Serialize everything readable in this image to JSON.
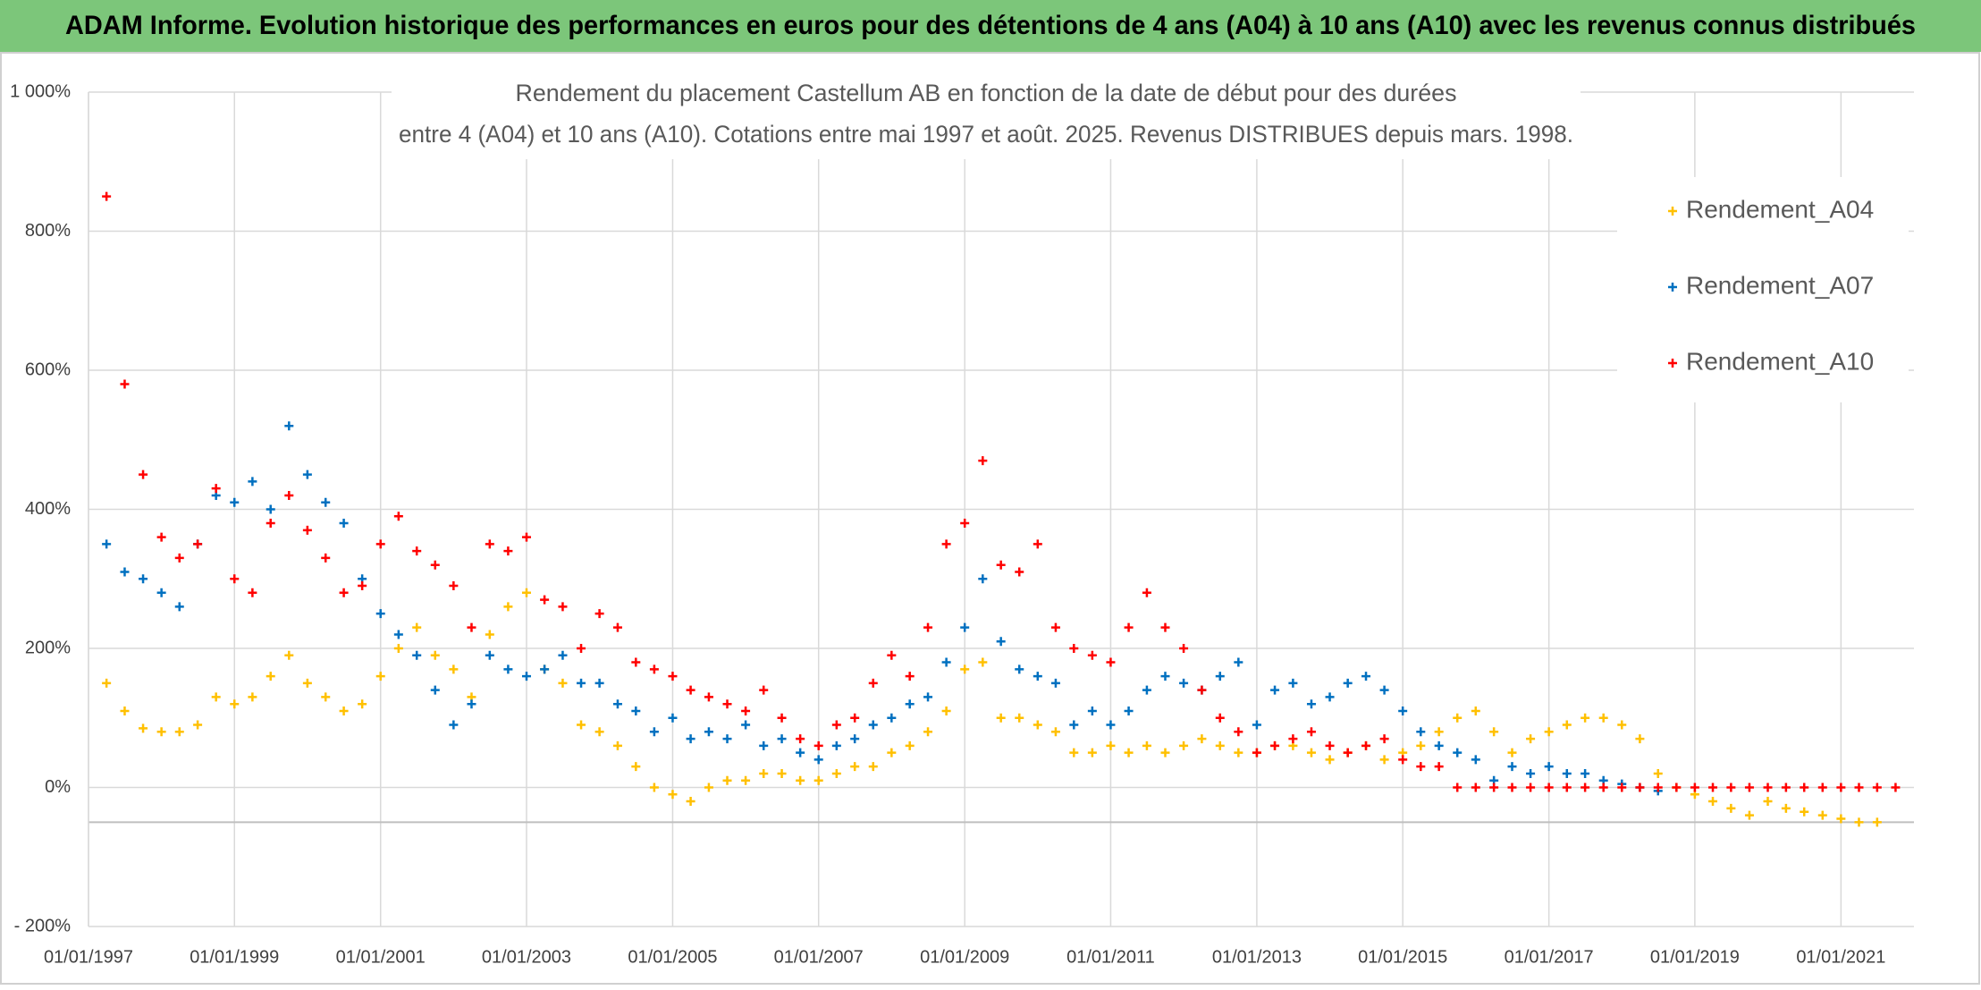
{
  "chart_data": {
    "type": "scatter",
    "header": "ADAM Informe. Evolution historique des performances en euros pour des détentions de 4 ans (A04) à 10 ans (A10) avec les revenus connus distribués",
    "title": [
      "Rendement du placement Castellum AB en fonction de la date de début pour des durées",
      "entre 4 (A04) et 10 ans (A10). Cotations entre mai 1997 et août. 2025. Revenus DISTRIBUES depuis mars. 1998."
    ],
    "x": [
      "1997-04-01",
      "1997-07-01",
      "1997-10-01",
      "1998-01-01",
      "1998-04-01",
      "1998-07-01",
      "1998-10-01",
      "1999-01-01",
      "1999-04-01",
      "1999-07-01",
      "1999-10-01",
      "2000-01-01",
      "2000-04-01",
      "2000-07-01",
      "2000-10-01",
      "2001-01-01",
      "2001-04-01",
      "2001-07-01",
      "2001-10-01",
      "2002-01-01",
      "2002-04-01",
      "2002-07-01",
      "2002-10-01",
      "2003-01-01",
      "2003-04-01",
      "2003-07-01",
      "2003-10-01",
      "2004-01-01",
      "2004-04-01",
      "2004-07-01",
      "2004-10-01",
      "2005-01-01",
      "2005-04-01",
      "2005-07-01",
      "2005-10-01",
      "2006-01-01",
      "2006-04-01",
      "2006-07-01",
      "2006-10-01",
      "2007-01-01",
      "2007-04-01",
      "2007-07-01",
      "2007-10-01",
      "2008-01-01",
      "2008-04-01",
      "2008-07-01",
      "2008-10-01",
      "2009-01-01",
      "2009-04-01",
      "2009-07-01",
      "2009-10-01",
      "2010-01-01",
      "2010-04-01",
      "2010-07-01",
      "2010-10-01",
      "2011-01-01",
      "2011-04-01",
      "2011-07-01",
      "2011-10-01",
      "2012-01-01",
      "2012-04-01",
      "2012-07-01",
      "2012-10-01",
      "2013-01-01",
      "2013-04-01",
      "2013-07-01",
      "2013-10-01",
      "2014-01-01",
      "2014-04-01",
      "2014-07-01",
      "2014-10-01",
      "2015-01-01",
      "2015-04-01",
      "2015-07-01",
      "2015-10-01",
      "2016-01-01",
      "2016-04-01",
      "2016-07-01",
      "2016-10-01",
      "2017-01-01",
      "2017-04-01",
      "2017-07-01",
      "2017-10-01",
      "2018-01-01",
      "2018-04-01",
      "2018-07-01",
      "2018-10-01",
      "2019-01-01",
      "2019-04-01",
      "2019-07-01",
      "2019-10-01",
      "2020-01-01",
      "2020-04-01",
      "2020-07-01",
      "2020-10-01",
      "2021-01-01",
      "2021-04-01",
      "2021-07-01",
      "2021-10-01"
    ],
    "series": [
      {
        "name": "Rendement_A04",
        "color": "#ffc000",
        "values": [
          150,
          110,
          85,
          80,
          80,
          90,
          130,
          120,
          130,
          160,
          190,
          150,
          130,
          110,
          120,
          160,
          200,
          230,
          190,
          170,
          130,
          220,
          260,
          280,
          170,
          150,
          90,
          80,
          60,
          30,
          0,
          -10,
          -20,
          0,
          10,
          10,
          20,
          20,
          10,
          10,
          20,
          30,
          30,
          50,
          60,
          80,
          110,
          170,
          180,
          100,
          100,
          90,
          80,
          50,
          50,
          60,
          50,
          60,
          50,
          60,
          70,
          60,
          50,
          50,
          60,
          60,
          50,
          40,
          50,
          60,
          40,
          50,
          60,
          80,
          100,
          110,
          80,
          50,
          70,
          80,
          90,
          100,
          100,
          90,
          70,
          20,
          0,
          -10,
          -20,
          -30,
          -40,
          -20,
          -30,
          -35,
          -40,
          -45,
          -50,
          -50,
          null
        ]
      },
      {
        "name": "Rendement_A07",
        "color": "#0070c0",
        "values": [
          350,
          310,
          300,
          280,
          260,
          350,
          420,
          410,
          440,
          400,
          520,
          450,
          410,
          380,
          300,
          250,
          220,
          190,
          140,
          90,
          120,
          190,
          170,
          160,
          170,
          190,
          150,
          150,
          120,
          110,
          80,
          100,
          70,
          80,
          70,
          90,
          60,
          70,
          50,
          40,
          60,
          70,
          90,
          100,
          120,
          130,
          180,
          230,
          300,
          210,
          170,
          160,
          150,
          90,
          110,
          90,
          110,
          140,
          160,
          150,
          140,
          160,
          180,
          90,
          140,
          150,
          120,
          130,
          150,
          160,
          140,
          110,
          80,
          60,
          50,
          40,
          10,
          30,
          20,
          30,
          20,
          20,
          10,
          5,
          0,
          -5,
          null,
          null,
          null,
          null,
          null,
          null,
          null,
          null,
          null,
          null,
          null,
          null,
          null
        ]
      },
      {
        "name": "Rendement_A10",
        "color": "#ff0000",
        "values": [
          850,
          580,
          450,
          360,
          330,
          350,
          430,
          300,
          280,
          380,
          420,
          370,
          330,
          280,
          290,
          350,
          390,
          340,
          320,
          290,
          230,
          350,
          340,
          360,
          270,
          260,
          200,
          250,
          230,
          180,
          170,
          160,
          140,
          130,
          120,
          110,
          140,
          100,
          70,
          60,
          90,
          100,
          150,
          190,
          160,
          230,
          350,
          380,
          470,
          320,
          310,
          350,
          230,
          200,
          190,
          180,
          230,
          280,
          230,
          200,
          140,
          100,
          80,
          50,
          60,
          70,
          80,
          60,
          50,
          60,
          70,
          40,
          30,
          30,
          0,
          0,
          0,
          0,
          0,
          0,
          0,
          0,
          0,
          0,
          0,
          0,
          0,
          0,
          0,
          0,
          0,
          0,
          0,
          0,
          0,
          0,
          0,
          0,
          0
        ]
      }
    ],
    "xlim": [
      "1997-01-01",
      "2022-01-01"
    ],
    "xticks": [
      {
        "value": "1997-01-01",
        "label": "01/01/1997"
      },
      {
        "value": "1999-01-01",
        "label": "01/01/1999"
      },
      {
        "value": "2001-01-01",
        "label": "01/01/2001"
      },
      {
        "value": "2003-01-01",
        "label": "01/01/2003"
      },
      {
        "value": "2005-01-01",
        "label": "01/01/2005"
      },
      {
        "value": "2007-01-01",
        "label": "01/01/2007"
      },
      {
        "value": "2009-01-01",
        "label": "01/01/2009"
      },
      {
        "value": "2011-01-01",
        "label": "01/01/2011"
      },
      {
        "value": "2013-01-01",
        "label": "01/01/2013"
      },
      {
        "value": "2015-01-01",
        "label": "01/01/2015"
      },
      {
        "value": "2017-01-01",
        "label": "01/01/2017"
      },
      {
        "value": "2019-01-01",
        "label": "01/01/2019"
      },
      {
        "value": "2021-01-01",
        "label": "01/01/2021"
      }
    ],
    "ylim": [
      -200,
      1000
    ],
    "yticks": [
      {
        "value": -200,
        "label": "- 200%"
      },
      {
        "value": 0,
        "label": "0%"
      },
      {
        "value": 200,
        "label": "200%"
      },
      {
        "value": 400,
        "label": "400%"
      },
      {
        "value": 600,
        "label": "600%"
      },
      {
        "value": 800,
        "label": "800%"
      },
      {
        "value": 1000,
        "label": "1 000%"
      }
    ],
    "x_axis_at": -50,
    "grid": true,
    "legend": "top-right"
  }
}
